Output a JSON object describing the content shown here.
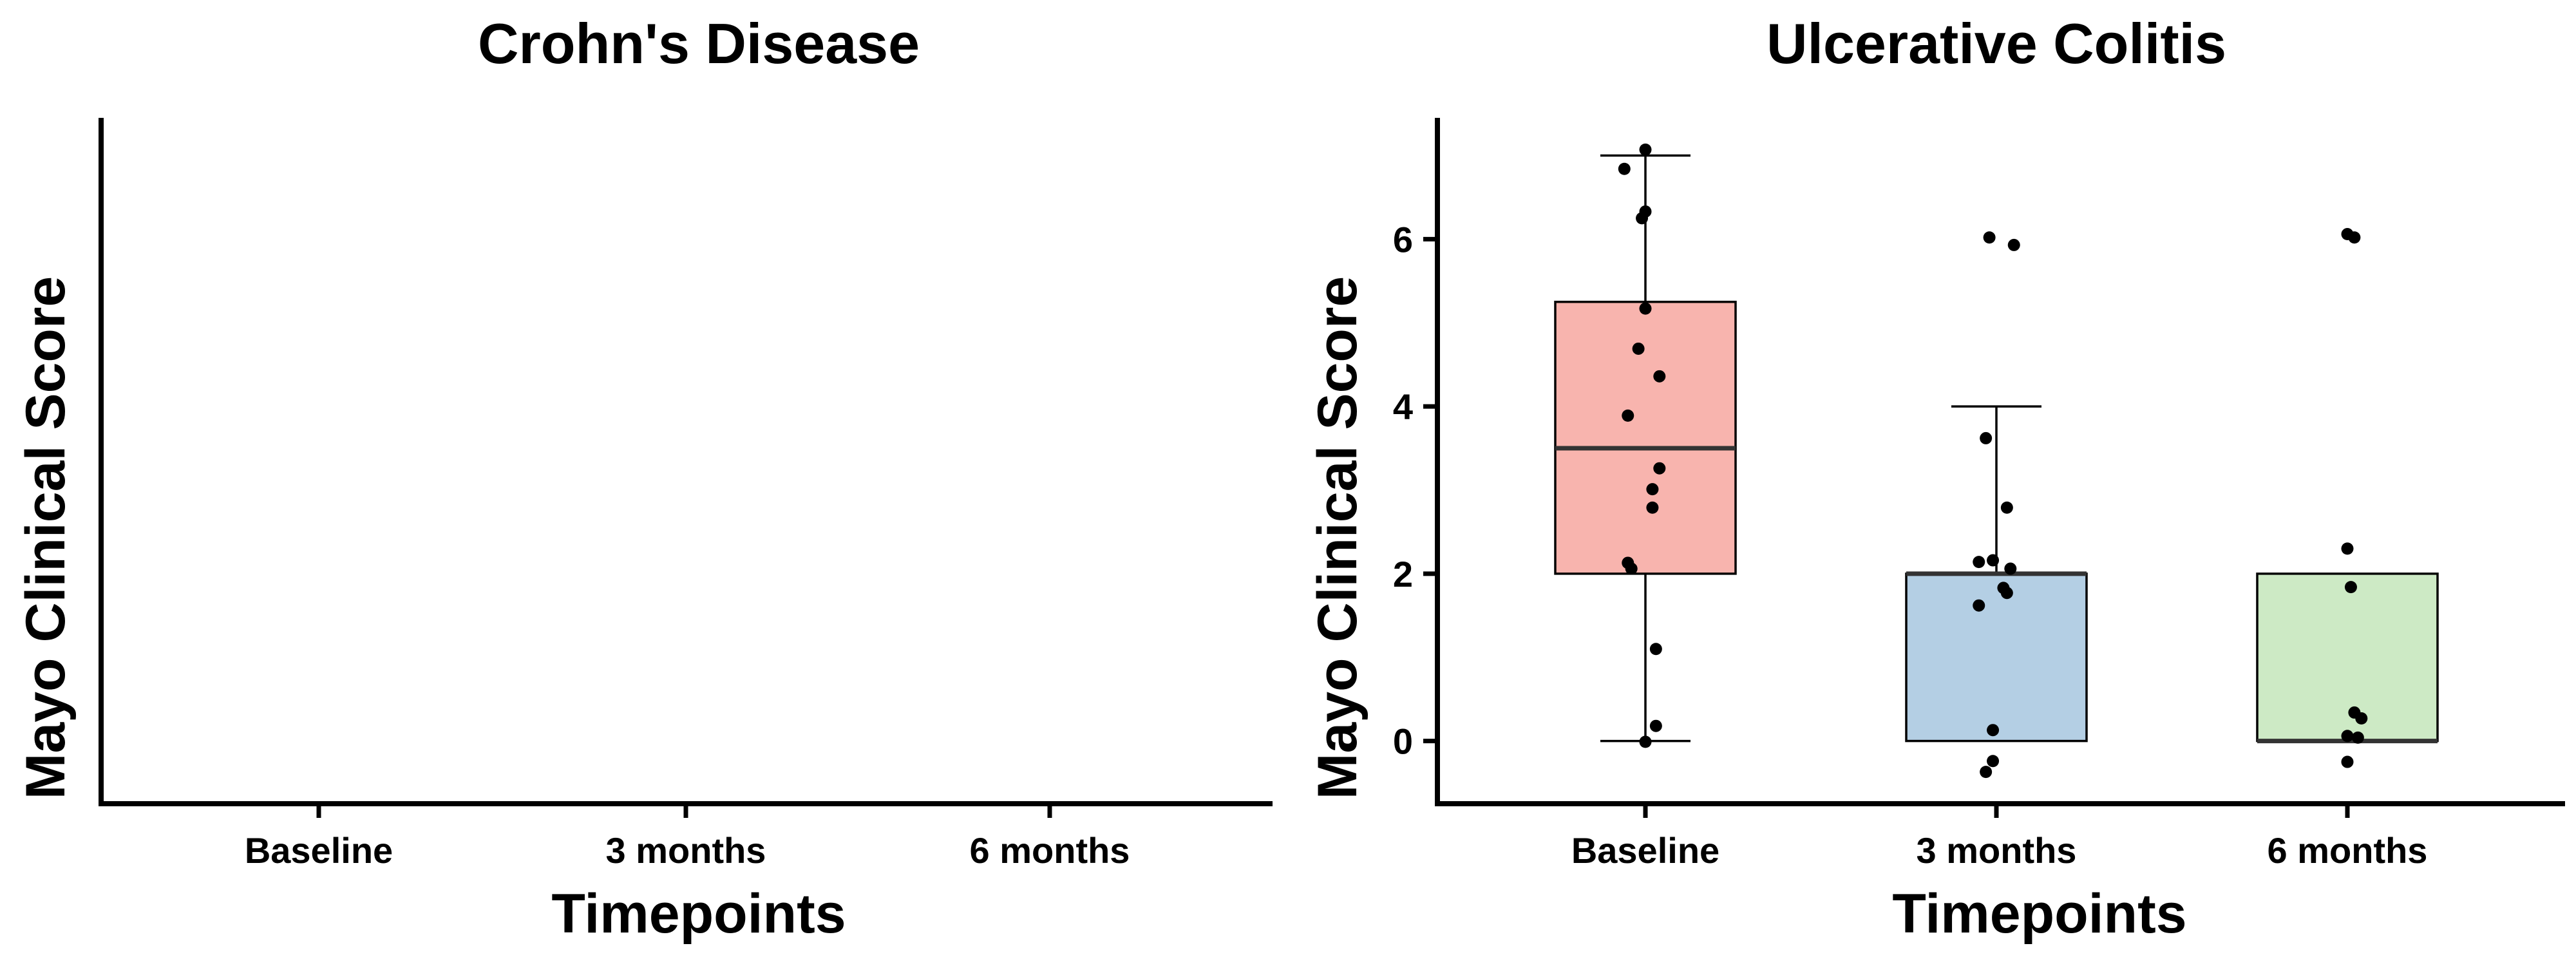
{
  "chart_data": [
    {
      "type": "box",
      "title": "Crohn's Disease",
      "xlabel": "Timepoints",
      "ylabel": "Mayo Clinical Score",
      "categories": [
        "Baseline",
        "3 months",
        "6 months"
      ],
      "yticks": [],
      "boxes": [],
      "points": []
    },
    {
      "type": "box",
      "title": "Ulcerative Colitis",
      "xlabel": "Timepoints",
      "ylabel": "Mayo Clinical Score",
      "categories": [
        "Baseline",
        "3 months",
        "6 months"
      ],
      "ylim": [
        -0.75,
        7.45
      ],
      "yticks": [
        "0",
        "2",
        "4",
        "6"
      ],
      "colors": [
        "#F8B4AE",
        "#B4CFE4",
        "#CDEAC5"
      ],
      "boxes": [
        {
          "category": "Baseline",
          "whisker_low": 0,
          "q1": 2,
          "median": 3.5,
          "q3": 5.25,
          "whisker_high": 7
        },
        {
          "category": "3 months",
          "whisker_low": 0,
          "q1": 0,
          "median": 2,
          "q3": 2,
          "whisker_high": 4
        },
        {
          "category": "6 months",
          "whisker_low": 0,
          "q1": 0,
          "median": 0,
          "q3": 2,
          "whisker_high": 2
        }
      ],
      "points": [
        {
          "category": "Baseline",
          "x_jitter": 0.0,
          "y": 7.07
        },
        {
          "category": "Baseline",
          "x_jitter": -0.06,
          "y": 6.84
        },
        {
          "category": "Baseline",
          "x_jitter": 0.0,
          "y": 6.33
        },
        {
          "category": "Baseline",
          "x_jitter": -0.01,
          "y": 6.25
        },
        {
          "category": "Baseline",
          "x_jitter": 0.0,
          "y": 5.17
        },
        {
          "category": "Baseline",
          "x_jitter": -0.02,
          "y": 4.69
        },
        {
          "category": "Baseline",
          "x_jitter": 0.04,
          "y": 4.36
        },
        {
          "category": "Baseline",
          "x_jitter": -0.05,
          "y": 3.89
        },
        {
          "category": "Baseline",
          "x_jitter": 0.04,
          "y": 3.26
        },
        {
          "category": "Baseline",
          "x_jitter": 0.02,
          "y": 3.01
        },
        {
          "category": "Baseline",
          "x_jitter": 0.02,
          "y": 2.79
        },
        {
          "category": "Baseline",
          "x_jitter": -0.05,
          "y": 2.13
        },
        {
          "category": "Baseline",
          "x_jitter": -0.04,
          "y": 2.06
        },
        {
          "category": "Baseline",
          "x_jitter": 0.03,
          "y": 1.1
        },
        {
          "category": "Baseline",
          "x_jitter": 0.03,
          "y": 0.18
        },
        {
          "category": "Baseline",
          "x_jitter": 0.0,
          "y": -0.01
        },
        {
          "category": "3 months",
          "x_jitter": -0.02,
          "y": 6.02
        },
        {
          "category": "3 months",
          "x_jitter": 0.05,
          "y": 5.93
        },
        {
          "category": "3 months",
          "x_jitter": -0.03,
          "y": 3.62
        },
        {
          "category": "3 months",
          "x_jitter": 0.03,
          "y": 2.79
        },
        {
          "category": "3 months",
          "x_jitter": -0.05,
          "y": 2.14
        },
        {
          "category": "3 months",
          "x_jitter": -0.01,
          "y": 2.16
        },
        {
          "category": "3 months",
          "x_jitter": 0.04,
          "y": 2.06
        },
        {
          "category": "3 months",
          "x_jitter": 0.02,
          "y": 1.83
        },
        {
          "category": "3 months",
          "x_jitter": 0.03,
          "y": 1.77
        },
        {
          "category": "3 months",
          "x_jitter": -0.05,
          "y": 1.62
        },
        {
          "category": "3 months",
          "x_jitter": -0.01,
          "y": 0.13
        },
        {
          "category": "3 months",
          "x_jitter": -0.01,
          "y": -0.24
        },
        {
          "category": "3 months",
          "x_jitter": -0.03,
          "y": -0.37
        },
        {
          "category": "6 months",
          "x_jitter": 0.0,
          "y": 6.06
        },
        {
          "category": "6 months",
          "x_jitter": 0.02,
          "y": 6.02
        },
        {
          "category": "6 months",
          "x_jitter": 0.0,
          "y": 2.3
        },
        {
          "category": "6 months",
          "x_jitter": 0.01,
          "y": 1.84
        },
        {
          "category": "6 months",
          "x_jitter": 0.02,
          "y": 0.34
        },
        {
          "category": "6 months",
          "x_jitter": 0.04,
          "y": 0.27
        },
        {
          "category": "6 months",
          "x_jitter": 0.0,
          "y": 0.06
        },
        {
          "category": "6 months",
          "x_jitter": 0.03,
          "y": 0.04
        },
        {
          "category": "6 months",
          "x_jitter": 0.0,
          "y": -0.25
        }
      ]
    }
  ]
}
